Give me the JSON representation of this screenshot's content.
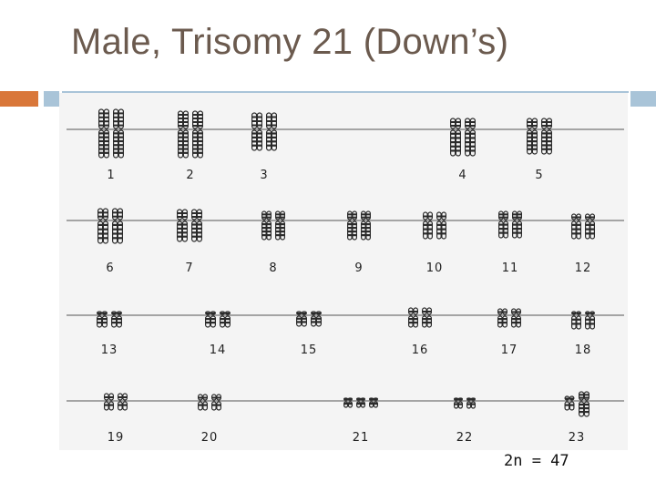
{
  "slide": {
    "title": "Male, Trisomy 21 (Down’s)",
    "footnote": "2n = 47",
    "colors": {
      "title": "#6b5a4e",
      "accent_orange": "#d9773a",
      "accent_blue": "#a9c4d8",
      "chromosome": "#2b2b2b"
    }
  },
  "karyotype": {
    "rows": [
      {
        "labels": [
          "1",
          "2",
          "3",
          "4",
          "5"
        ]
      },
      {
        "labels": [
          "6",
          "7",
          "8",
          "9",
          "10",
          "11",
          "12"
        ]
      },
      {
        "labels": [
          "13",
          "14",
          "15",
          "16",
          "17",
          "18"
        ]
      },
      {
        "labels": [
          "19",
          "20",
          "21",
          "22",
          "23"
        ]
      }
    ],
    "copies": {
      "1": 2,
      "2": 2,
      "3": 2,
      "4": 2,
      "5": 2,
      "6": 2,
      "7": 2,
      "8": 2,
      "9": 2,
      "10": 2,
      "11": 2,
      "12": 2,
      "13": 2,
      "14": 2,
      "15": 2,
      "16": 2,
      "17": 2,
      "18": 2,
      "19": 2,
      "20": 2,
      "21": 3,
      "22": 2,
      "23": 2
    }
  }
}
